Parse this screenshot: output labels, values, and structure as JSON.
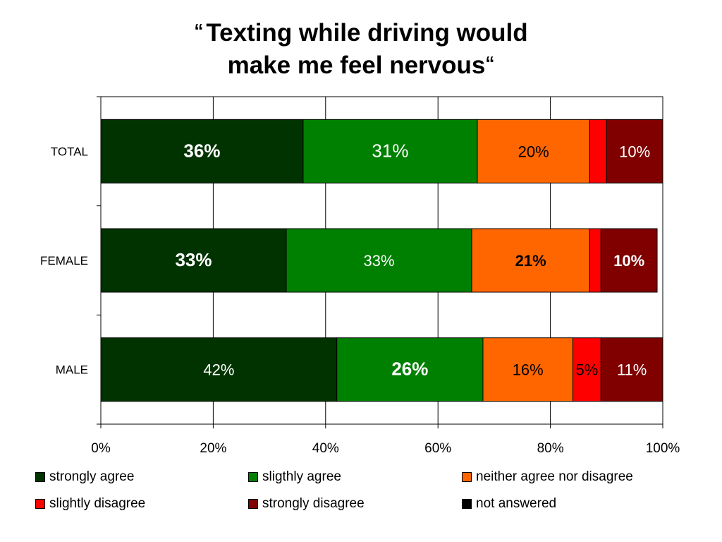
{
  "chart_data": {
    "type": "bar",
    "orientation": "horizontal",
    "stacked": true,
    "title": {
      "open_quote": "“",
      "line1": "Texting while driving would",
      "line2": "make me feel nervous",
      "close_quote": "“"
    },
    "categories": [
      "TOTAL",
      "FEMALE",
      "MALE"
    ],
    "series": [
      {
        "name": "strongly agree",
        "color": "#003300",
        "label_color": "#ffffff",
        "values": [
          36,
          33,
          42
        ],
        "labels": [
          "36%",
          "33%",
          "42%"
        ],
        "label_bold": [
          true,
          true,
          false
        ],
        "label_size": [
          26,
          26,
          22
        ]
      },
      {
        "name": "sligthly agree",
        "color": "#008000",
        "label_color": "#ffffff",
        "values": [
          31,
          33,
          26
        ],
        "labels": [
          "31%",
          "33%",
          "26%"
        ],
        "label_bold": [
          false,
          false,
          true
        ],
        "label_size": [
          26,
          22,
          26
        ]
      },
      {
        "name": "neither agree nor disagree",
        "color": "#ff6600",
        "label_color": "#000000",
        "values": [
          20,
          21,
          16
        ],
        "labels": [
          "20%",
          "21%",
          "16%"
        ],
        "label_bold": [
          false,
          true,
          false
        ],
        "label_size": [
          22,
          22,
          22
        ]
      },
      {
        "name": "slightly disagree",
        "color": "#ff0000",
        "label_color": "#000000",
        "values": [
          3,
          2,
          5
        ],
        "labels": [
          "",
          "",
          "5%"
        ],
        "label_bold": [
          false,
          false,
          false
        ],
        "label_size": [
          22,
          22,
          22
        ]
      },
      {
        "name": "strongly disagree",
        "color": "#800000",
        "label_color": "#ffffff",
        "values": [
          10,
          10,
          11
        ],
        "labels": [
          "10%",
          "10%",
          "11%"
        ],
        "label_bold": [
          false,
          true,
          false
        ],
        "label_size": [
          22,
          22,
          22
        ]
      },
      {
        "name": "not answered",
        "color": "#000000",
        "label_color": "#ffffff",
        "values": [
          0,
          0,
          0
        ],
        "labels": [
          "",
          "",
          ""
        ],
        "label_bold": [
          false,
          false,
          false
        ],
        "label_size": [
          22,
          22,
          22
        ]
      }
    ],
    "xlim": [
      0,
      100
    ],
    "xticks": [
      "0%",
      "20%",
      "40%",
      "60%",
      "80%",
      "100%"
    ],
    "xtick_values": [
      0,
      20,
      40,
      60,
      80,
      100
    ],
    "grid": true,
    "legend_position": "bottom",
    "xlabel": "",
    "ylabel": ""
  }
}
